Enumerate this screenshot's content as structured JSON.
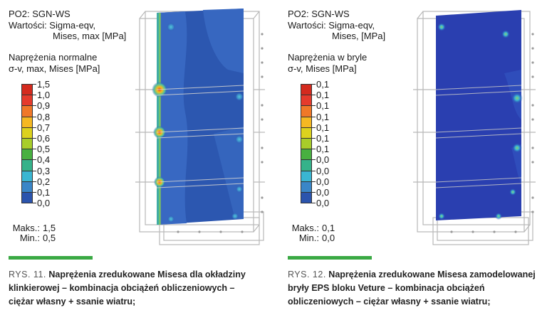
{
  "left": {
    "header": [
      "PO2: SGN-WS",
      "Wartości: Sigma-eqv,",
      "Mises, max [MPa]"
    ],
    "subtitle": [
      "Naprężenia normalne",
      "σ-v, max, Mises [MPa]"
    ],
    "legend": {
      "labels": [
        "1,5",
        "1,0",
        "0,9",
        "0,8",
        "0,7",
        "0,6",
        "0,5",
        "0,4",
        "0,3",
        "0,2",
        "0,1",
        "0,0"
      ],
      "colors": [
        "#d42a1e",
        "#e53a2c",
        "#f07828",
        "#f5b822",
        "#dcd21e",
        "#a8cd2a",
        "#48b040",
        "#35b28a",
        "#3ab6d2",
        "#3a86c8",
        "#2b54ad",
        "#24309a"
      ]
    },
    "maxmin": {
      "max_key": "Maks.:",
      "max": "1,5",
      "min_key": "Min.:",
      "min": "0,5"
    },
    "caption": {
      "number": "RYS. 11.",
      "text": "Naprężenia zredukowane Misesa dla okładziny klinkierowej – kombinacja obciążeń obliczeniowych – ciężar własny + ssanie wiatru;"
    }
  },
  "right": {
    "header": [
      "PO2: SGN-WS",
      "Wartości: Sigma-eqv,",
      "Mises, [MPa]"
    ],
    "subtitle": [
      "Naprężenia w bryle",
      "σ-v, Mises [MPa]"
    ],
    "legend": {
      "labels": [
        "0,1",
        "0,1",
        "0,1",
        "0,1",
        "0,1",
        "0,1",
        "0,1",
        "0,0",
        "0,0",
        "0,0",
        "0,0",
        "0,0"
      ],
      "colors": [
        "#d42a1e",
        "#e53a2c",
        "#f07828",
        "#f5b822",
        "#dcd21e",
        "#a8cd2a",
        "#48b040",
        "#35b28a",
        "#3ab6d2",
        "#3a86c8",
        "#2b54ad",
        "#24309a"
      ]
    },
    "maxmin": {
      "max_key": "Maks.:",
      "max": "0,1",
      "min_key": "Min.:",
      "min": "0,0"
    },
    "caption": {
      "number": "RYS. 12.",
      "text": "Naprężenia zredukowane Misesa zamodelowanej bryły EPS bloku Veture – kombinacja obciążeń obliczeniowych – ciężar własny + ssanie wiatru;"
    }
  }
}
